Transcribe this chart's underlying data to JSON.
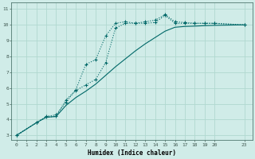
{
  "xlabel": "Humidex (Indice chaleur)",
  "bg_color": "#d0ece8",
  "grid_color": "#b0d8d0",
  "line_color": "#006868",
  "xlim": [
    -0.5,
    23.8
  ],
  "ylim": [
    2.7,
    11.4
  ],
  "xticks": [
    0,
    1,
    2,
    3,
    4,
    5,
    6,
    7,
    8,
    9,
    10,
    11,
    12,
    13,
    14,
    15,
    16,
    17,
    18,
    19,
    20,
    23
  ],
  "yticks": [
    3,
    4,
    5,
    6,
    7,
    8,
    9,
    10,
    11
  ],
  "line1_x": [
    0,
    2,
    3,
    4,
    5,
    6,
    7,
    8,
    9,
    10,
    11,
    12,
    13,
    14,
    15,
    16,
    17,
    18,
    19,
    20,
    23
  ],
  "line1_y": [
    3.0,
    3.8,
    4.2,
    4.3,
    5.1,
    5.9,
    7.5,
    7.8,
    9.3,
    10.1,
    10.2,
    10.1,
    10.2,
    10.3,
    10.65,
    10.2,
    10.15,
    10.1,
    10.1,
    10.1,
    10.0
  ],
  "line2_x": [
    0,
    2,
    3,
    4,
    5,
    6,
    7,
    8,
    9,
    10,
    11,
    12,
    13,
    14,
    15,
    16,
    17,
    18,
    19,
    20,
    23
  ],
  "line2_y": [
    3.0,
    3.8,
    4.15,
    4.2,
    5.25,
    5.85,
    6.2,
    6.55,
    7.6,
    9.8,
    10.1,
    10.1,
    10.1,
    10.15,
    10.6,
    10.1,
    10.1,
    10.1,
    10.1,
    10.1,
    10.0
  ],
  "line3_x": [
    0,
    2,
    3,
    4,
    5,
    6,
    7,
    8,
    9,
    10,
    11,
    12,
    13,
    14,
    15,
    16,
    17,
    18,
    19,
    20,
    23
  ],
  "line3_y": [
    3.0,
    3.8,
    4.15,
    4.2,
    4.9,
    5.4,
    5.8,
    6.25,
    6.8,
    7.35,
    7.85,
    8.35,
    8.8,
    9.2,
    9.6,
    9.85,
    9.9,
    9.92,
    9.95,
    9.97,
    10.0
  ]
}
